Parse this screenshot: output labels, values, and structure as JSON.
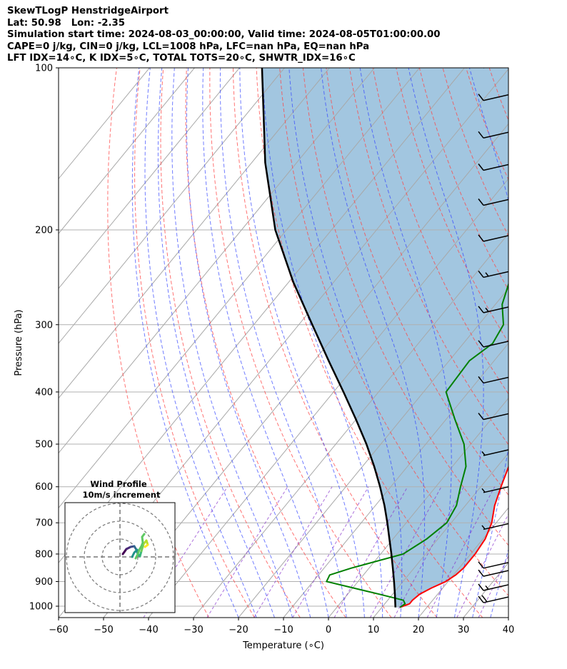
{
  "header": {
    "line1": "SkewTLogP HenstridgeAirport",
    "line2": "Lat: 50.98   Lon: -2.35",
    "line3": "Simulation start time: 2024-08-03_00:00:00, Valid time: 2024-08-05T01:00:00.00",
    "line4": "CAPE=0 j/kg, CIN=0 j/kg, LCL=1008 hPa, LFC=nan hPa, EQ=nan hPa",
    "line5": "LFT IDX=14∘C, K IDX=5∘C, TOTAL TOTS=20∘C, SHWTR_IDX=16∘C"
  },
  "chart_data": {
    "type": "line",
    "subtype": "skew-T log-P",
    "xlabel": "Temperature (∘C)",
    "ylabel": "Pressure (hPa)",
    "xlim": [
      -60,
      40
    ],
    "ylim": [
      1050,
      100
    ],
    "y_scale": "log",
    "x_ticks": [
      "−60",
      "−50",
      "−40",
      "−30",
      "−20",
      "−10",
      "0",
      "10",
      "20",
      "30",
      "40"
    ],
    "y_ticks": [
      "1000",
      "900",
      "800",
      "700",
      "600",
      "500",
      "400",
      "300",
      "200",
      "100"
    ],
    "grid": true,
    "colors": {
      "temperature": "#ff0000",
      "dewpoint": "#008000",
      "parcel": "#000000",
      "shade": "#a2c6e0",
      "dry_adiabat": "#ff4444",
      "moist_adiabat": "#3344ff",
      "mixing_ratio": "#8833cc",
      "isotherm": "#aaaaaa",
      "wind_barb": "#000000"
    },
    "series": [
      {
        "role": "temperature",
        "p": [
          1005,
          990,
          975,
          950,
          925,
          900,
          875,
          850,
          800,
          750,
          700,
          650,
          600,
          550,
          500,
          450,
          400,
          350,
          300,
          275,
          250,
          225,
          200,
          185,
          175,
          160,
          150,
          140,
          130,
          120,
          110,
          100
        ],
        "t": [
          14.0,
          15.5,
          15.5,
          16.0,
          17.5,
          19.5,
          20.5,
          21.0,
          21.0,
          20.5,
          19.0,
          16.5,
          14.5,
          12.5,
          10.0,
          7.0,
          3.5,
          -0.5,
          -5.0,
          -7.5,
          -11.0,
          -14.5,
          -18.5,
          -19.5,
          -19.5,
          -18.0,
          -17.5,
          -17.0,
          -16.5,
          -15.5,
          -14.0,
          -12.5
        ]
      },
      {
        "role": "dewpoint",
        "p": [
          1005,
          990,
          975,
          950,
          900,
          875,
          850,
          800,
          750,
          700,
          650,
          600,
          550,
          500,
          450,
          400,
          350,
          325,
          300,
          275,
          250,
          225,
          200,
          185,
          175,
          165,
          155,
          140,
          130,
          120,
          110,
          100
        ],
        "t": [
          14.0,
          14.5,
          13.5,
          7.0,
          -7.0,
          -7.5,
          -4.0,
          5.0,
          7.5,
          9.0,
          8.0,
          5.5,
          3.0,
          -1.5,
          -8.0,
          -15.0,
          -15.5,
          -13.5,
          -14.5,
          -18.5,
          -21.0,
          -21.5,
          -24.5,
          -25.5,
          -26.5,
          -27.5,
          -29.5,
          -31.0,
          -30.5,
          -29.0,
          -27.5,
          -26.0
        ]
      },
      {
        "role": "parcel",
        "p": [
          1005,
          950,
          900,
          850,
          800,
          750,
          700,
          650,
          600,
          550,
          500,
          450,
          400,
          350,
          300,
          250,
          200,
          150,
          100
        ],
        "t": [
          13.0,
          10.5,
          8.0,
          5.3,
          2.4,
          -0.8,
          -4.2,
          -8.0,
          -12.4,
          -17.4,
          -23.2,
          -30.0,
          -37.8,
          -46.8,
          -57.0,
          -69.0,
          -82.5,
          -97.0,
          -115.0
        ]
      }
    ],
    "wind_barbs": {
      "levels": [
        100,
        115,
        135,
        155,
        180,
        210,
        245,
        285,
        330,
        385,
        450,
        525,
        615,
        720,
        850,
        880,
        935,
        985
      ],
      "speed_kt": [
        10,
        10,
        10,
        10,
        10,
        10,
        15,
        15,
        10,
        10,
        10,
        5,
        5,
        5,
        10,
        10,
        15,
        20
      ]
    },
    "inset": {
      "title": "Wind Profile",
      "subtitle": "10m/s increment",
      "rings": [
        1,
        2,
        3
      ]
    }
  }
}
